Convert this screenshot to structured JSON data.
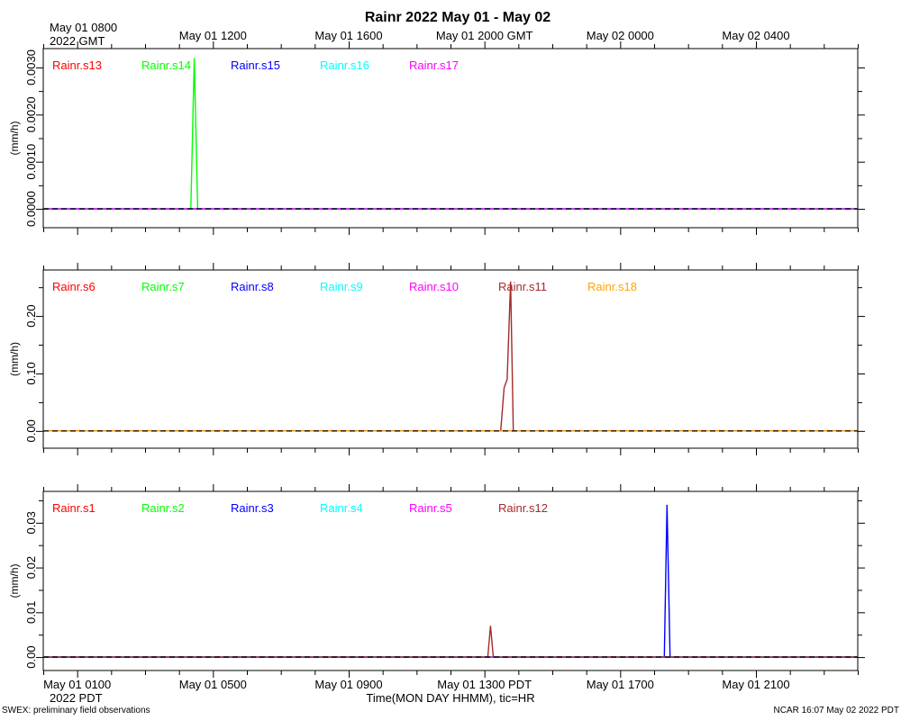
{
  "title": "Rainr 2022 May 01 - May 02",
  "top_axis": {
    "tick_labels": [
      "May 01 0800",
      "May 01 1200",
      "May 01 1600",
      "May 01 2000 GMT",
      "May 02 0000",
      "May 02 0400"
    ],
    "year_label": "2022 GMT"
  },
  "bottom_axis": {
    "tick_labels": [
      "May 01 0100",
      "May 01 0500",
      "May 01 0900",
      "May 01 1300 PDT",
      "May 01 1700",
      "May 01 2100"
    ],
    "year_label": "2022 PDT",
    "xlabel": "Time(MON DAY HHMM), tic=HR"
  },
  "footer": {
    "left": "SWEX: preliminary field observations",
    "right": "NCAR 16:07 May 02 2022 PDT"
  },
  "chart_data": [
    {
      "type": "line",
      "ylabel": "(mm/h)",
      "ylim": [
        -0.0004,
        0.0034
      ],
      "yticks": [
        "0.0000",
        "0.0010",
        "0.0020",
        "0.0030"
      ],
      "xlim_hours_pdt": [
        0,
        24
      ],
      "series": [
        {
          "name": "Rainr.s13",
          "color": "#ff0000",
          "x": [
            0,
            24
          ],
          "y": [
            0,
            0
          ]
        },
        {
          "name": "Rainr.s14",
          "color": "#00ff00",
          "x": [
            0,
            4.35,
            4.45,
            4.55,
            24
          ],
          "y": [
            0,
            0,
            0.0032,
            0,
            0
          ]
        },
        {
          "name": "Rainr.s15",
          "color": "#0000ff",
          "x": [
            0,
            24
          ],
          "y": [
            0,
            0
          ]
        },
        {
          "name": "Rainr.s16",
          "color": "#00ffff",
          "x": [
            0,
            24
          ],
          "y": [
            0,
            0
          ]
        },
        {
          "name": "Rainr.s17",
          "color": "#ff00ff",
          "x": [
            0,
            24
          ],
          "y": [
            0,
            0
          ]
        }
      ]
    },
    {
      "type": "line",
      "ylabel": "(mm/h)",
      "ylim": [
        -0.03,
        0.28
      ],
      "yticks": [
        "0.00",
        "0.10",
        "0.20"
      ],
      "xlim_hours_pdt": [
        0,
        24
      ],
      "series": [
        {
          "name": "Rainr.s6",
          "color": "#ff0000",
          "x": [
            0,
            24
          ],
          "y": [
            0,
            0
          ]
        },
        {
          "name": "Rainr.s7",
          "color": "#00ff00",
          "x": [
            0,
            24
          ],
          "y": [
            0,
            0
          ]
        },
        {
          "name": "Rainr.s8",
          "color": "#0000ff",
          "x": [
            0,
            24
          ],
          "y": [
            0,
            0
          ]
        },
        {
          "name": "Rainr.s9",
          "color": "#00ffff",
          "x": [
            0,
            24
          ],
          "y": [
            0,
            0
          ]
        },
        {
          "name": "Rainr.s10",
          "color": "#ff00ff",
          "x": [
            0,
            24
          ],
          "y": [
            0,
            0
          ]
        },
        {
          "name": "Rainr.s11",
          "color": "#a52a2a",
          "x": [
            0,
            13.48,
            13.58,
            13.67,
            13.77,
            13.85,
            24
          ],
          "y": [
            0,
            0,
            0.075,
            0.09,
            0.26,
            0,
            0
          ]
        },
        {
          "name": "Rainr.s18",
          "color": "#ffa500",
          "x": [
            0,
            24
          ],
          "y": [
            0,
            0
          ]
        }
      ]
    },
    {
      "type": "line",
      "ylabel": "(mm/h)",
      "ylim": [
        -0.003,
        0.037
      ],
      "yticks": [
        "0.00",
        "0.01",
        "0.02",
        "0.03"
      ],
      "xlim_hours_pdt": [
        0,
        24
      ],
      "series": [
        {
          "name": "Rainr.s1",
          "color": "#ff0000",
          "x": [
            0,
            24
          ],
          "y": [
            0,
            0
          ]
        },
        {
          "name": "Rainr.s2",
          "color": "#00ff00",
          "x": [
            0,
            24
          ],
          "y": [
            0,
            0
          ]
        },
        {
          "name": "Rainr.s3",
          "color": "#0000ff",
          "x": [
            0,
            18.3,
            18.38,
            18.47,
            24
          ],
          "y": [
            0,
            0,
            0.034,
            0,
            0
          ]
        },
        {
          "name": "Rainr.s4",
          "color": "#00ffff",
          "x": [
            0,
            24
          ],
          "y": [
            0,
            0
          ]
        },
        {
          "name": "Rainr.s5",
          "color": "#ff00ff",
          "x": [
            0,
            24
          ],
          "y": [
            0,
            0
          ]
        },
        {
          "name": "Rainr.s12",
          "color": "#a52a2a",
          "x": [
            0,
            13.1,
            13.18,
            13.26,
            24
          ],
          "y": [
            0,
            0,
            0.007,
            0,
            0
          ]
        }
      ]
    }
  ]
}
